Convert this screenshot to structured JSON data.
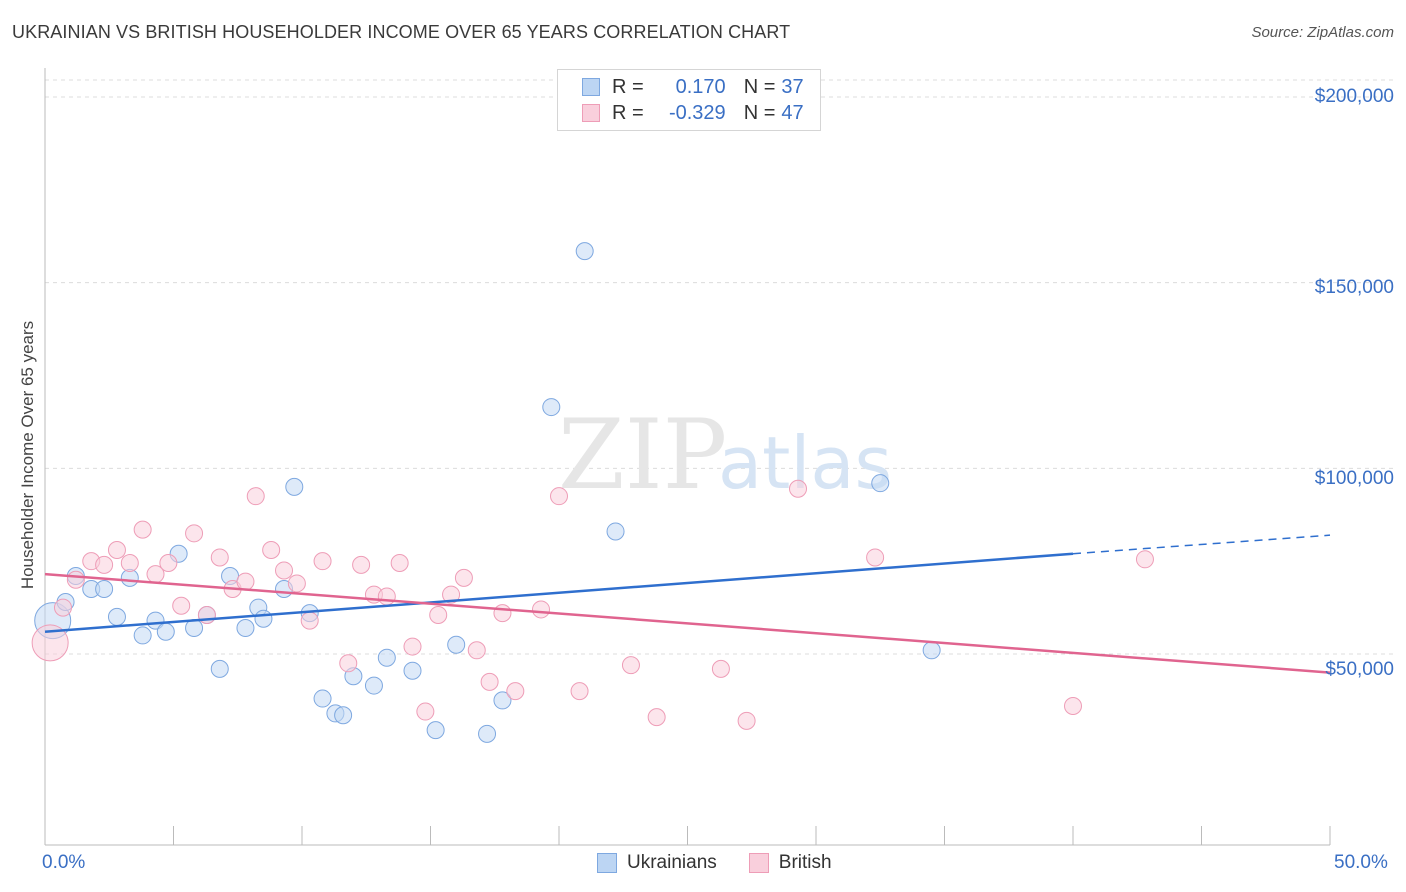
{
  "header": {
    "title": "UKRAINIAN VS BRITISH HOUSEHOLDER INCOME OVER 65 YEARS CORRELATION CHART",
    "source": "Source: ZipAtlas.com"
  },
  "watermark": {
    "zip": "ZIP",
    "atlas": "atlas"
  },
  "legend": {
    "rows": [
      {
        "r_label": "R =",
        "r_value": "0.170",
        "n_label": "N =",
        "n_value": "37",
        "color": "#a9c8ef"
      },
      {
        "r_label": "R =",
        "r_value": "-0.329",
        "n_label": "N =",
        "n_value": "47",
        "color": "#f5b7c9"
      }
    ],
    "bottom": [
      "Ukrainians",
      "British"
    ]
  },
  "axes": {
    "x_min_label": "0.0%",
    "x_max_label": "50.0%",
    "y_ticks": [
      "$200,000",
      "$150,000",
      "$100,000",
      "$50,000"
    ]
  },
  "chart_data": {
    "type": "scatter",
    "title": "UKRAINIAN VS BRITISH HOUSEHOLDER INCOME OVER 65 YEARS CORRELATION CHART",
    "xlabel": "",
    "ylabel": "Householder Income Over 65 years",
    "xlim": [
      0,
      50
    ],
    "ylim": [
      0,
      210000
    ],
    "x_unit": "%",
    "grid": true,
    "legend_position": "top-center",
    "series": [
      {
        "name": "Ukrainians",
        "color": "#a9c8ef",
        "line_color": "#2f6fce",
        "trend": {
          "x": [
            0,
            40
          ],
          "y": [
            56000,
            77000
          ],
          "dashed_to": [
            50,
            82000
          ]
        },
        "points": [
          [
            0.3,
            59000
          ],
          [
            0.8,
            64000
          ],
          [
            1.2,
            71000
          ],
          [
            1.8,
            67500
          ],
          [
            2.3,
            67500
          ],
          [
            2.8,
            60000
          ],
          [
            3.3,
            70500
          ],
          [
            3.8,
            55000
          ],
          [
            4.3,
            59000
          ],
          [
            4.7,
            56000
          ],
          [
            5.2,
            77000
          ],
          [
            5.8,
            57000
          ],
          [
            6.3,
            60500
          ],
          [
            6.8,
            46000
          ],
          [
            7.2,
            71000
          ],
          [
            7.8,
            57000
          ],
          [
            8.3,
            62500
          ],
          [
            8.5,
            59500
          ],
          [
            9.3,
            67500
          ],
          [
            9.7,
            95000
          ],
          [
            10.3,
            61000
          ],
          [
            10.8,
            38000
          ],
          [
            11.3,
            34000
          ],
          [
            11.6,
            33500
          ],
          [
            12.0,
            44000
          ],
          [
            12.8,
            41500
          ],
          [
            13.3,
            49000
          ],
          [
            14.3,
            45500
          ],
          [
            15.2,
            29500
          ],
          [
            16.0,
            52500
          ],
          [
            17.8,
            37500
          ],
          [
            17.2,
            28500
          ],
          [
            19.7,
            116500
          ],
          [
            21.0,
            158500
          ],
          [
            22.2,
            83000
          ],
          [
            32.5,
            96000
          ],
          [
            34.5,
            51000
          ]
        ]
      },
      {
        "name": "British",
        "color": "#f5b7c9",
        "line_color": "#e0648f",
        "trend": {
          "x": [
            0,
            50
          ],
          "y": [
            71500,
            45000
          ]
        },
        "points": [
          [
            0.2,
            53000
          ],
          [
            0.7,
            62500
          ],
          [
            1.2,
            70000
          ],
          [
            1.8,
            75000
          ],
          [
            2.3,
            74000
          ],
          [
            2.8,
            78000
          ],
          [
            3.3,
            74500
          ],
          [
            3.8,
            83500
          ],
          [
            4.3,
            71500
          ],
          [
            4.8,
            74500
          ],
          [
            5.3,
            63000
          ],
          [
            5.8,
            82500
          ],
          [
            6.3,
            60500
          ],
          [
            6.8,
            76000
          ],
          [
            7.3,
            67500
          ],
          [
            7.8,
            69500
          ],
          [
            8.2,
            92500
          ],
          [
            8.8,
            78000
          ],
          [
            9.3,
            72500
          ],
          [
            9.8,
            69000
          ],
          [
            10.3,
            59000
          ],
          [
            10.8,
            75000
          ],
          [
            11.8,
            47500
          ],
          [
            12.3,
            74000
          ],
          [
            12.8,
            66000
          ],
          [
            13.3,
            65500
          ],
          [
            13.8,
            74500
          ],
          [
            14.8,
            34500
          ],
          [
            14.3,
            52000
          ],
          [
            15.3,
            60500
          ],
          [
            15.8,
            66000
          ],
          [
            16.3,
            70500
          ],
          [
            16.8,
            51000
          ],
          [
            17.3,
            42500
          ],
          [
            17.8,
            61000
          ],
          [
            18.3,
            40000
          ],
          [
            19.3,
            62000
          ],
          [
            20.0,
            92500
          ],
          [
            20.8,
            40000
          ],
          [
            22.8,
            47000
          ],
          [
            23.8,
            33000
          ],
          [
            26.3,
            46000
          ],
          [
            27.3,
            32000
          ],
          [
            29.3,
            94500
          ],
          [
            32.3,
            76000
          ],
          [
            40.0,
            36000
          ],
          [
            42.8,
            75500
          ]
        ]
      }
    ]
  }
}
